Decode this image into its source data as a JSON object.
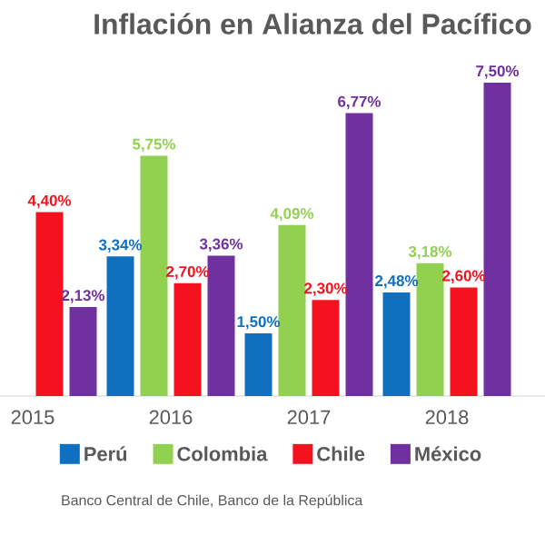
{
  "chart_data": {
    "type": "bar",
    "title": "Inflación en Alianza del Pacífico",
    "categories": [
      "2015",
      "2016",
      "2017",
      "2018"
    ],
    "series": [
      {
        "name": "Perú",
        "color": "#1070c0",
        "values": [
          null,
          3.34,
          1.5,
          2.48
        ],
        "value_labels": [
          null,
          "3,34%",
          "1,50%",
          "2,48%"
        ]
      },
      {
        "name": "Colombia",
        "color": "#92d050",
        "values": [
          null,
          5.75,
          4.09,
          3.18
        ],
        "value_labels": [
          null,
          "5,75%",
          "4,09%",
          "3,18%"
        ]
      },
      {
        "name": "Chile",
        "color": "#f5121f",
        "values": [
          4.4,
          2.7,
          2.3,
          2.6
        ],
        "value_labels": [
          "4,40%",
          "2,70%",
          "2,30%",
          "2,60%"
        ]
      },
      {
        "name": "México",
        "color": "#7030a0",
        "values": [
          2.13,
          3.36,
          6.77,
          7.5
        ],
        "value_labels": [
          "2,13%",
          "3,36%",
          "6,77%",
          "7,50%"
        ]
      }
    ],
    "legend": "bottom",
    "annotations": [
      "Banco Central de Chile, Banco de la República"
    ]
  }
}
